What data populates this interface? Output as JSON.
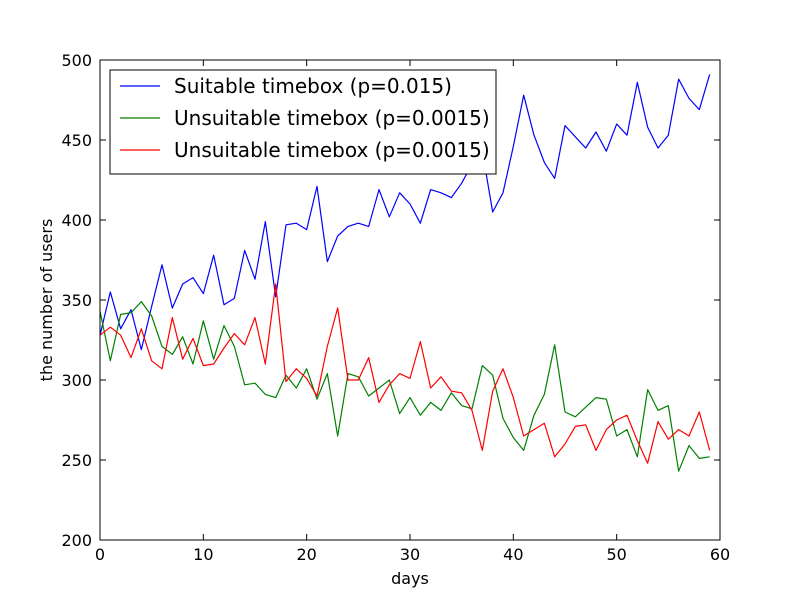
{
  "chart_data": {
    "type": "line",
    "title": "",
    "xlabel": "days",
    "ylabel": "the number of users",
    "xlim": [
      0,
      60
    ],
    "ylim": [
      200,
      500
    ],
    "xticks": [
      0,
      10,
      20,
      30,
      40,
      50,
      60
    ],
    "yticks": [
      200,
      250,
      300,
      350,
      400,
      450,
      500
    ],
    "grid": false,
    "legend_position": "upper-left",
    "x": [
      0,
      1,
      2,
      3,
      4,
      5,
      6,
      7,
      8,
      9,
      10,
      11,
      12,
      13,
      14,
      15,
      16,
      17,
      18,
      19,
      20,
      21,
      22,
      23,
      24,
      25,
      26,
      27,
      28,
      29,
      30,
      31,
      32,
      33,
      34,
      35,
      36,
      37,
      38,
      39,
      40,
      41,
      42,
      43,
      44,
      45,
      46,
      47,
      48,
      49,
      50,
      51,
      52,
      53,
      54,
      55,
      56,
      57,
      58,
      59
    ],
    "series": [
      {
        "name": "Suitable timebox (p=0.015)",
        "color": "#0000ff",
        "values": [
          328,
          355,
          332,
          344,
          319,
          346,
          372,
          345,
          360,
          364,
          354,
          378,
          347,
          351,
          381,
          363,
          399,
          352,
          397,
          398,
          394,
          421,
          374,
          390,
          396,
          398,
          396,
          419,
          402,
          417,
          410,
          398,
          419,
          417,
          414,
          423,
          435,
          443,
          405,
          417,
          446,
          478,
          453,
          436,
          426,
          459,
          452,
          445,
          455,
          443,
          460,
          453,
          486,
          458,
          445,
          453,
          488,
          476,
          469,
          491
        ]
      },
      {
        "name": "Unsuitable timebox (p=0.0015)",
        "color": "#008000",
        "values": [
          343,
          312,
          341,
          342,
          349,
          340,
          321,
          316,
          327,
          310,
          337,
          313,
          334,
          321,
          297,
          298,
          291,
          289,
          303,
          295,
          307,
          288,
          304,
          265,
          304,
          302,
          290,
          295,
          300,
          279,
          289,
          278,
          286,
          281,
          292,
          284,
          282,
          309,
          303,
          276,
          264,
          256,
          278,
          291,
          322,
          280,
          277,
          283,
          289,
          288,
          265,
          269,
          252,
          294,
          281,
          284,
          243,
          259,
          251,
          252
        ]
      },
      {
        "name": "Unsuitable timebox (p=0.0015)",
        "color": "#ff0000",
        "values": [
          328,
          333,
          328,
          314,
          332,
          312,
          307,
          339,
          313,
          326,
          309,
          310,
          320,
          329,
          322,
          339,
          310,
          360,
          299,
          307,
          301,
          290,
          321,
          345,
          300,
          300,
          314,
          286,
          297,
          304,
          301,
          324,
          295,
          302,
          293,
          292,
          281,
          256,
          293,
          307,
          289,
          265,
          269,
          273,
          252,
          260,
          271,
          272,
          256,
          269,
          275,
          278,
          262,
          248,
          274,
          263,
          269,
          265,
          280,
          256
        ]
      }
    ]
  }
}
